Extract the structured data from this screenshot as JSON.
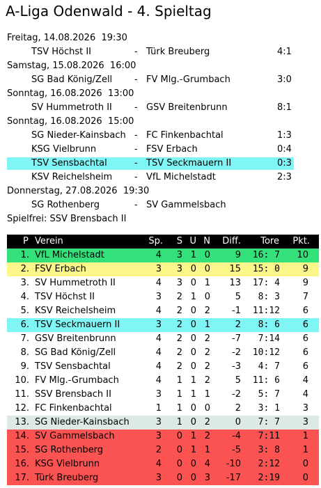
{
  "header": {
    "title": "A-Liga Odenwald - 4. Spieltag"
  },
  "schedule": [
    {
      "day": "Freitag, 14.08.2026  19:30",
      "games": [
        {
          "home": "TSV Höchst II",
          "sep": "-",
          "away": "Türk Breuberg",
          "score": "4:1"
        }
      ]
    },
    {
      "day": "Samstag, 15.08.2026  16:00",
      "games": [
        {
          "home": "SG Bad König/Zell",
          "sep": "-",
          "away": "FV Mlg.-Grumbach",
          "score": "3:0"
        }
      ]
    },
    {
      "day": "Sonntag, 16.08.2026  13:00",
      "games": [
        {
          "home": "SV Hummetroth II",
          "sep": "-",
          "away": "GSV Breitenbrunn",
          "score": "8:1"
        }
      ]
    },
    {
      "day": "Sonntag, 16.08.2026  15:00",
      "games": [
        {
          "home": "SG Nieder-Kainsbach",
          "sep": "-",
          "away": "FC Finkenbachtal",
          "score": "1:3"
        },
        {
          "home": "KSG Vielbrunn",
          "sep": "-",
          "away": "FSV Erbach",
          "score": "0:4"
        },
        {
          "home": "TSV Sensbachtal",
          "sep": "-",
          "away": "TSV Seckmauern II",
          "score": "0:3",
          "highlight": "#7ff5f5"
        },
        {
          "home": "KSV Reichelsheim",
          "sep": "-",
          "away": "VfL Michelstadt",
          "score": "2:3"
        }
      ]
    },
    {
      "day": "Donnerstag, 27.08.2026  19:30",
      "games": [
        {
          "home": "SG Rothenberg",
          "sep": "-",
          "away": "SV Gammelsbach"
        }
      ]
    }
  ],
  "bye": "Spielfrei: SSV Brensbach II",
  "table": {
    "columns": [
      "P",
      "Verein",
      "Sp.",
      "S",
      "U",
      "N",
      "Diff.",
      "Tore",
      "Pkt."
    ],
    "rows": [
      {
        "cells": [
          "1.",
          "VfL Michelstadt",
          4,
          3,
          1,
          0,
          9,
          "16: 7",
          10
        ],
        "highlight": "#33e07a"
      },
      {
        "cells": [
          "2.",
          "FSV Erbach",
          3,
          3,
          0,
          0,
          15,
          "15: 0",
          9
        ],
        "highlight": "#fbf78a"
      },
      {
        "cells": [
          "3.",
          "SV Hummetroth II",
          4,
          3,
          0,
          1,
          13,
          "17: 4",
          9
        ]
      },
      {
        "cells": [
          "4.",
          "TSV Höchst II",
          3,
          2,
          1,
          0,
          5,
          " 8: 3",
          7
        ]
      },
      {
        "cells": [
          "5.",
          "KSV Reichelsheim",
          4,
          2,
          0,
          2,
          -1,
          "11:12",
          6
        ]
      },
      {
        "cells": [
          "6.",
          "TSV Seckmauern II",
          3,
          2,
          0,
          1,
          2,
          " 8: 6",
          6
        ],
        "highlight": "#7ff5f5"
      },
      {
        "cells": [
          "7.",
          "GSV Breitenbrunn",
          4,
          2,
          0,
          2,
          -7,
          " 7:14",
          6
        ]
      },
      {
        "cells": [
          "8.",
          "SG Bad König/Zell",
          4,
          2,
          0,
          2,
          -2,
          "10:12",
          6
        ]
      },
      {
        "cells": [
          "9.",
          "TSV Sensbachtal",
          4,
          2,
          0,
          2,
          -3,
          " 4: 7",
          6
        ]
      },
      {
        "cells": [
          "10.",
          "FV Mlg.-Grumbach",
          4,
          1,
          1,
          2,
          5,
          "11: 6",
          4
        ]
      },
      {
        "cells": [
          "11.",
          "SSV Brensbach II",
          3,
          1,
          1,
          1,
          -2,
          " 5: 7",
          4
        ]
      },
      {
        "cells": [
          "12.",
          "FC Finkenbachtal",
          1,
          1,
          0,
          0,
          2,
          " 3: 1",
          3
        ]
      },
      {
        "cells": [
          "13.",
          "SG Nieder-Kainsbach",
          3,
          1,
          0,
          2,
          0,
          " 7: 7",
          3
        ],
        "highlight": "#dde9e5"
      },
      {
        "cells": [
          "14.",
          "SV Gammelsbach",
          3,
          0,
          1,
          2,
          -4,
          " 7:11",
          1
        ],
        "highlight": "#fb5252"
      },
      {
        "cells": [
          "15.",
          "SG Rothenberg",
          2,
          0,
          1,
          1,
          -5,
          " 3: 8",
          1
        ],
        "highlight": "#fb5252"
      },
      {
        "cells": [
          "16.",
          "KSG Vielbrunn",
          4,
          0,
          0,
          4,
          -10,
          " 2:12",
          0
        ],
        "highlight": "#fb5252"
      },
      {
        "cells": [
          "17.",
          "Türk Breuberg",
          3,
          0,
          0,
          3,
          -17,
          " 2:19",
          0
        ],
        "highlight": "#fb5252"
      }
    ]
  }
}
